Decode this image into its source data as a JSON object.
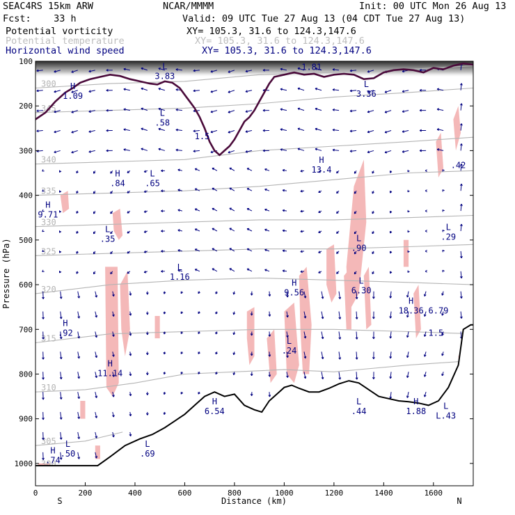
{
  "header": {
    "model": "SEAC4RS 15km ARW",
    "center": "NCAR/MMMM",
    "init": "Init: 00 UTC Mon 26 Aug 13",
    "fcst": "Fcst:    33 h",
    "valid": "Valid: 09 UTC Tue 27 Aug 13 (04 CDT Tue 27 Aug 13)",
    "fields": [
      {
        "name": "Potential vorticity",
        "xy": "XY= 105.3, 31.6 to 124.3,147.6",
        "color": "#000000"
      },
      {
        "name": "Potential temperature",
        "xy": "XY= 105.3, 31.6 to 124.3,147.6",
        "color": "#bdbdbd"
      },
      {
        "name": "Horizontal wind speed",
        "xy": "XY= 105.3, 31.6 to 124.3,147.6",
        "color": "#000080"
      }
    ]
  },
  "chart_data": {
    "type": "cross-section",
    "xlabel": "Distance (km)",
    "ylabel": "Pressure (hPa)",
    "xlim": [
      0,
      1760
    ],
    "ylim": [
      1050,
      100
    ],
    "xticks": [
      0,
      200,
      400,
      600,
      800,
      1000,
      1200,
      1400,
      1600
    ],
    "yticks": [
      100,
      200,
      300,
      400,
      500,
      600,
      700,
      800,
      900,
      1000
    ],
    "end_labels": {
      "left": "S",
      "right": "N"
    },
    "colors": {
      "theta": "#b4b4b4",
      "pv_fill": "#f4b8b8",
      "wind": "#000080",
      "terrain": "#000000",
      "pv_contour": "#4a0a3a"
    },
    "terrain": [
      [
        0,
        1005
      ],
      [
        120,
        1005
      ],
      [
        250,
        1005
      ],
      [
        300,
        985
      ],
      [
        360,
        960
      ],
      [
        420,
        945
      ],
      [
        470,
        935
      ],
      [
        520,
        920
      ],
      [
        560,
        905
      ],
      [
        600,
        890
      ],
      [
        640,
        870
      ],
      [
        680,
        850
      ],
      [
        720,
        840
      ],
      [
        760,
        850
      ],
      [
        800,
        845
      ],
      [
        840,
        870
      ],
      [
        880,
        880
      ],
      [
        910,
        885
      ],
      [
        940,
        860
      ],
      [
        980,
        840
      ],
      [
        1000,
        830
      ],
      [
        1030,
        825
      ],
      [
        1060,
        832
      ],
      [
        1100,
        840
      ],
      [
        1140,
        840
      ],
      [
        1180,
        832
      ],
      [
        1220,
        822
      ],
      [
        1260,
        815
      ],
      [
        1300,
        820
      ],
      [
        1340,
        835
      ],
      [
        1380,
        850
      ],
      [
        1420,
        855
      ],
      [
        1460,
        860
      ],
      [
        1500,
        862
      ],
      [
        1540,
        865
      ],
      [
        1580,
        870
      ],
      [
        1620,
        860
      ],
      [
        1660,
        830
      ],
      [
        1700,
        780
      ],
      [
        1720,
        700
      ],
      [
        1750,
        690
      ],
      [
        1760,
        690
      ]
    ],
    "dynamic_tropopause": [
      [
        0,
        230
      ],
      [
        40,
        215
      ],
      [
        80,
        190
      ],
      [
        120,
        170
      ],
      [
        150,
        160
      ],
      [
        180,
        148
      ],
      [
        220,
        140
      ],
      [
        260,
        135
      ],
      [
        300,
        130
      ],
      [
        340,
        133
      ],
      [
        380,
        140
      ],
      [
        420,
        145
      ],
      [
        460,
        150
      ],
      [
        490,
        152
      ],
      [
        520,
        145
      ],
      [
        550,
        148
      ],
      [
        580,
        160
      ],
      [
        600,
        175
      ],
      [
        620,
        190
      ],
      [
        640,
        205
      ],
      [
        660,
        225
      ],
      [
        680,
        250
      ],
      [
        700,
        280
      ],
      [
        720,
        300
      ],
      [
        740,
        310
      ],
      [
        760,
        300
      ],
      [
        780,
        290
      ],
      [
        800,
        275
      ],
      [
        820,
        255
      ],
      [
        840,
        235
      ],
      [
        860,
        225
      ],
      [
        880,
        210
      ],
      [
        900,
        190
      ],
      [
        920,
        170
      ],
      [
        940,
        150
      ],
      [
        960,
        135
      ],
      [
        1000,
        130
      ],
      [
        1040,
        125
      ],
      [
        1080,
        130
      ],
      [
        1120,
        128
      ],
      [
        1160,
        135
      ],
      [
        1200,
        130
      ],
      [
        1240,
        128
      ],
      [
        1280,
        130
      ],
      [
        1320,
        140
      ],
      [
        1360,
        138
      ],
      [
        1400,
        125
      ],
      [
        1440,
        120
      ],
      [
        1480,
        118
      ],
      [
        1520,
        120
      ],
      [
        1560,
        125
      ],
      [
        1600,
        115
      ],
      [
        1640,
        118
      ],
      [
        1680,
        110
      ],
      [
        1720,
        105
      ],
      [
        1760,
        108
      ]
    ],
    "theta_contours": [
      {
        "label": "300",
        "points": [
          [
            0,
            160
          ],
          [
            300,
            150
          ],
          [
            600,
            145
          ],
          [
            900,
            130
          ],
          [
            1200,
            125
          ],
          [
            1500,
            118
          ],
          [
            1760,
            110
          ]
        ]
      },
      {
        "label": "345",
        "points": [
          [
            0,
            215
          ],
          [
            300,
            210
          ],
          [
            600,
            205
          ],
          [
            900,
            195
          ],
          [
            1200,
            180
          ],
          [
            1500,
            170
          ],
          [
            1760,
            160
          ]
        ]
      },
      {
        "label": "340",
        "points": [
          [
            0,
            330
          ],
          [
            300,
            325
          ],
          [
            600,
            320
          ],
          [
            900,
            300
          ],
          [
            1200,
            290
          ],
          [
            1500,
            280
          ],
          [
            1760,
            270
          ]
        ]
      },
      {
        "label": "335",
        "points": [
          [
            0,
            400
          ],
          [
            300,
            395
          ],
          [
            600,
            390
          ],
          [
            900,
            380
          ],
          [
            1200,
            365
          ],
          [
            1500,
            350
          ],
          [
            1760,
            345
          ]
        ]
      },
      {
        "label": "330",
        "points": [
          [
            0,
            470
          ],
          [
            300,
            465
          ],
          [
            600,
            460
          ],
          [
            900,
            455
          ],
          [
            1200,
            455
          ],
          [
            1500,
            450
          ],
          [
            1760,
            445
          ]
        ]
      },
      {
        "label": "325",
        "points": [
          [
            0,
            535
          ],
          [
            300,
            530
          ],
          [
            600,
            525
          ],
          [
            900,
            520
          ],
          [
            1200,
            520
          ],
          [
            1500,
            515
          ],
          [
            1760,
            510
          ]
        ]
      },
      {
        "label": "320",
        "points": [
          [
            0,
            620
          ],
          [
            300,
            600
          ],
          [
            600,
            590
          ],
          [
            900,
            585
          ],
          [
            1200,
            590
          ],
          [
            1500,
            595
          ],
          [
            1760,
            600
          ]
        ]
      },
      {
        "label": "315",
        "points": [
          [
            0,
            730
          ],
          [
            300,
            710
          ],
          [
            600,
            705
          ],
          [
            900,
            700
          ],
          [
            1200,
            700
          ],
          [
            1500,
            705
          ],
          [
            1760,
            710
          ]
        ]
      },
      {
        "label": "310",
        "points": [
          [
            0,
            840
          ],
          [
            200,
            835
          ],
          [
            400,
            820
          ],
          [
            600,
            800
          ],
          [
            800,
            795
          ],
          [
            1000,
            790
          ],
          [
            1200,
            795
          ],
          [
            1500,
            780
          ],
          [
            1760,
            770
          ]
        ]
      },
      {
        "label": "305",
        "points": [
          [
            0,
            960
          ],
          [
            200,
            950
          ],
          [
            350,
            930
          ]
        ]
      },
      {
        "label": "300",
        "points": [
          [
            0,
            1010
          ],
          [
            150,
            1005
          ]
        ]
      }
    ],
    "pv_fill_regions": [
      [
        [
          100,
          400
        ],
        [
          130,
          390
        ],
        [
          135,
          430
        ],
        [
          110,
          440
        ]
      ],
      [
        [
          310,
          440
        ],
        [
          340,
          430
        ],
        [
          350,
          490
        ],
        [
          335,
          500
        ],
        [
          315,
          480
        ]
      ],
      [
        [
          280,
          560
        ],
        [
          330,
          560
        ],
        [
          335,
          820
        ],
        [
          310,
          850
        ],
        [
          285,
          830
        ]
      ],
      [
        [
          340,
          600
        ],
        [
          370,
          570
        ],
        [
          380,
          700
        ],
        [
          360,
          760
        ],
        [
          345,
          700
        ]
      ],
      [
        [
          480,
          670
        ],
        [
          500,
          670
        ],
        [
          500,
          720
        ],
        [
          480,
          720
        ]
      ],
      [
        [
          850,
          660
        ],
        [
          880,
          650
        ],
        [
          880,
          760
        ],
        [
          860,
          780
        ],
        [
          850,
          720
        ]
      ],
      [
        [
          930,
          720
        ],
        [
          960,
          700
        ],
        [
          970,
          800
        ],
        [
          945,
          820
        ]
      ],
      [
        [
          1000,
          660
        ],
        [
          1040,
          640
        ],
        [
          1060,
          780
        ],
        [
          1040,
          820
        ],
        [
          1010,
          800
        ]
      ],
      [
        [
          1060,
          580
        ],
        [
          1090,
          560
        ],
        [
          1110,
          690
        ],
        [
          1100,
          800
        ],
        [
          1075,
          800
        ],
        [
          1065,
          700
        ]
      ],
      [
        [
          1170,
          520
        ],
        [
          1200,
          510
        ],
        [
          1210,
          620
        ],
        [
          1190,
          640
        ],
        [
          1170,
          600
        ]
      ],
      [
        [
          1240,
          580
        ],
        [
          1270,
          560
        ],
        [
          1270,
          700
        ],
        [
          1250,
          700
        ]
      ],
      [
        [
          1280,
          380
        ],
        [
          1320,
          320
        ],
        [
          1330,
          460
        ],
        [
          1300,
          620
        ],
        [
          1260,
          660
        ],
        [
          1250,
          560
        ]
      ],
      [
        [
          1320,
          580
        ],
        [
          1340,
          560
        ],
        [
          1350,
          690
        ],
        [
          1330,
          700
        ]
      ],
      [
        [
          1480,
          500
        ],
        [
          1500,
          500
        ],
        [
          1500,
          560
        ],
        [
          1480,
          560
        ]
      ],
      [
        [
          1520,
          620
        ],
        [
          1540,
          600
        ],
        [
          1550,
          700
        ],
        [
          1530,
          720
        ]
      ],
      [
        [
          1610,
          280
        ],
        [
          1630,
          260
        ],
        [
          1640,
          340
        ],
        [
          1620,
          360
        ]
      ],
      [
        [
          1680,
          230
        ],
        [
          1700,
          200
        ],
        [
          1710,
          260
        ],
        [
          1690,
          300
        ]
      ],
      [
        [
          1700,
          760
        ],
        [
          1720,
          740
        ],
        [
          1730,
          820
        ],
        [
          1710,
          840
        ]
      ],
      [
        [
          180,
          860
        ],
        [
          200,
          860
        ],
        [
          200,
          900
        ],
        [
          180,
          900
        ]
      ],
      [
        [
          240,
          960
        ],
        [
          260,
          960
        ],
        [
          260,
          990
        ],
        [
          240,
          990
        ]
      ],
      [
        [
          10,
          1000
        ],
        [
          60,
          1000
        ],
        [
          60,
          1015
        ],
        [
          10,
          1015
        ]
      ]
    ],
    "extrema": [
      {
        "t": "L",
        "v": "3.83",
        "x": 520,
        "p": 130
      },
      {
        "t": "H",
        "v": "1.09",
        "x": 150,
        "p": 175
      },
      {
        "t": "L",
        "v": ".58",
        "x": 510,
        "p": 235
      },
      {
        "t": "",
        "v": "1.5",
        "x": 670,
        "p": 265
      },
      {
        "t": "L",
        "v": "1.81",
        "x": 1110,
        "p": 110
      },
      {
        "t": "L",
        "v": "3.36",
        "x": 1330,
        "p": 170
      },
      {
        "t": "H",
        "v": "13.4",
        "x": 1150,
        "p": 340
      },
      {
        "t": "L",
        "v": ".65",
        "x": 470,
        "p": 370
      },
      {
        "t": "H",
        "v": ".84",
        "x": 330,
        "p": 370
      },
      {
        "t": "H",
        "v": "9.71",
        "x": 50,
        "p": 440
      },
      {
        "t": "L",
        "v": ".35",
        "x": 290,
        "p": 495
      },
      {
        "t": "L",
        "v": "1.16",
        "x": 580,
        "p": 580
      },
      {
        "t": "H",
        "v": "9.56",
        "x": 1040,
        "p": 615
      },
      {
        "t": "L",
        "v": "6.30",
        "x": 1310,
        "p": 610
      },
      {
        "t": "L",
        "v": ".90",
        "x": 1300,
        "p": 515
      },
      {
        "t": "L",
        "v": ".29",
        "x": 1660,
        "p": 490
      },
      {
        "t": "H",
        "v": "18.36",
        "x": 1510,
        "p": 655
      },
      {
        "t": "",
        "v": "6.79",
        "x": 1620,
        "p": 655
      },
      {
        "t": "",
        "v": "1.5",
        "x": 1610,
        "p": 705
      },
      {
        "t": "H",
        "v": ".92",
        "x": 120,
        "p": 705
      },
      {
        "t": "L",
        "v": ".24",
        "x": 1020,
        "p": 745
      },
      {
        "t": "H",
        "v": "11.14",
        "x": 300,
        "p": 795
      },
      {
        "t": "H",
        "v": "6.54",
        "x": 720,
        "p": 880
      },
      {
        "t": "L",
        "v": ".44",
        "x": 1300,
        "p": 880
      },
      {
        "t": "H",
        "v": "1.88",
        "x": 1530,
        "p": 880
      },
      {
        "t": "L",
        "v": "L.43",
        "x": 1650,
        "p": 890
      },
      {
        "t": "L",
        "v": ".50",
        "x": 130,
        "p": 975
      },
      {
        "t": "L",
        "v": ".69",
        "x": 450,
        "p": 975
      },
      {
        "t": "H",
        "v": ".74",
        "x": 70,
        "p": 990
      },
      {
        "t": "",
        "v": ".42",
        "x": 1700,
        "p": 330
      }
    ]
  }
}
